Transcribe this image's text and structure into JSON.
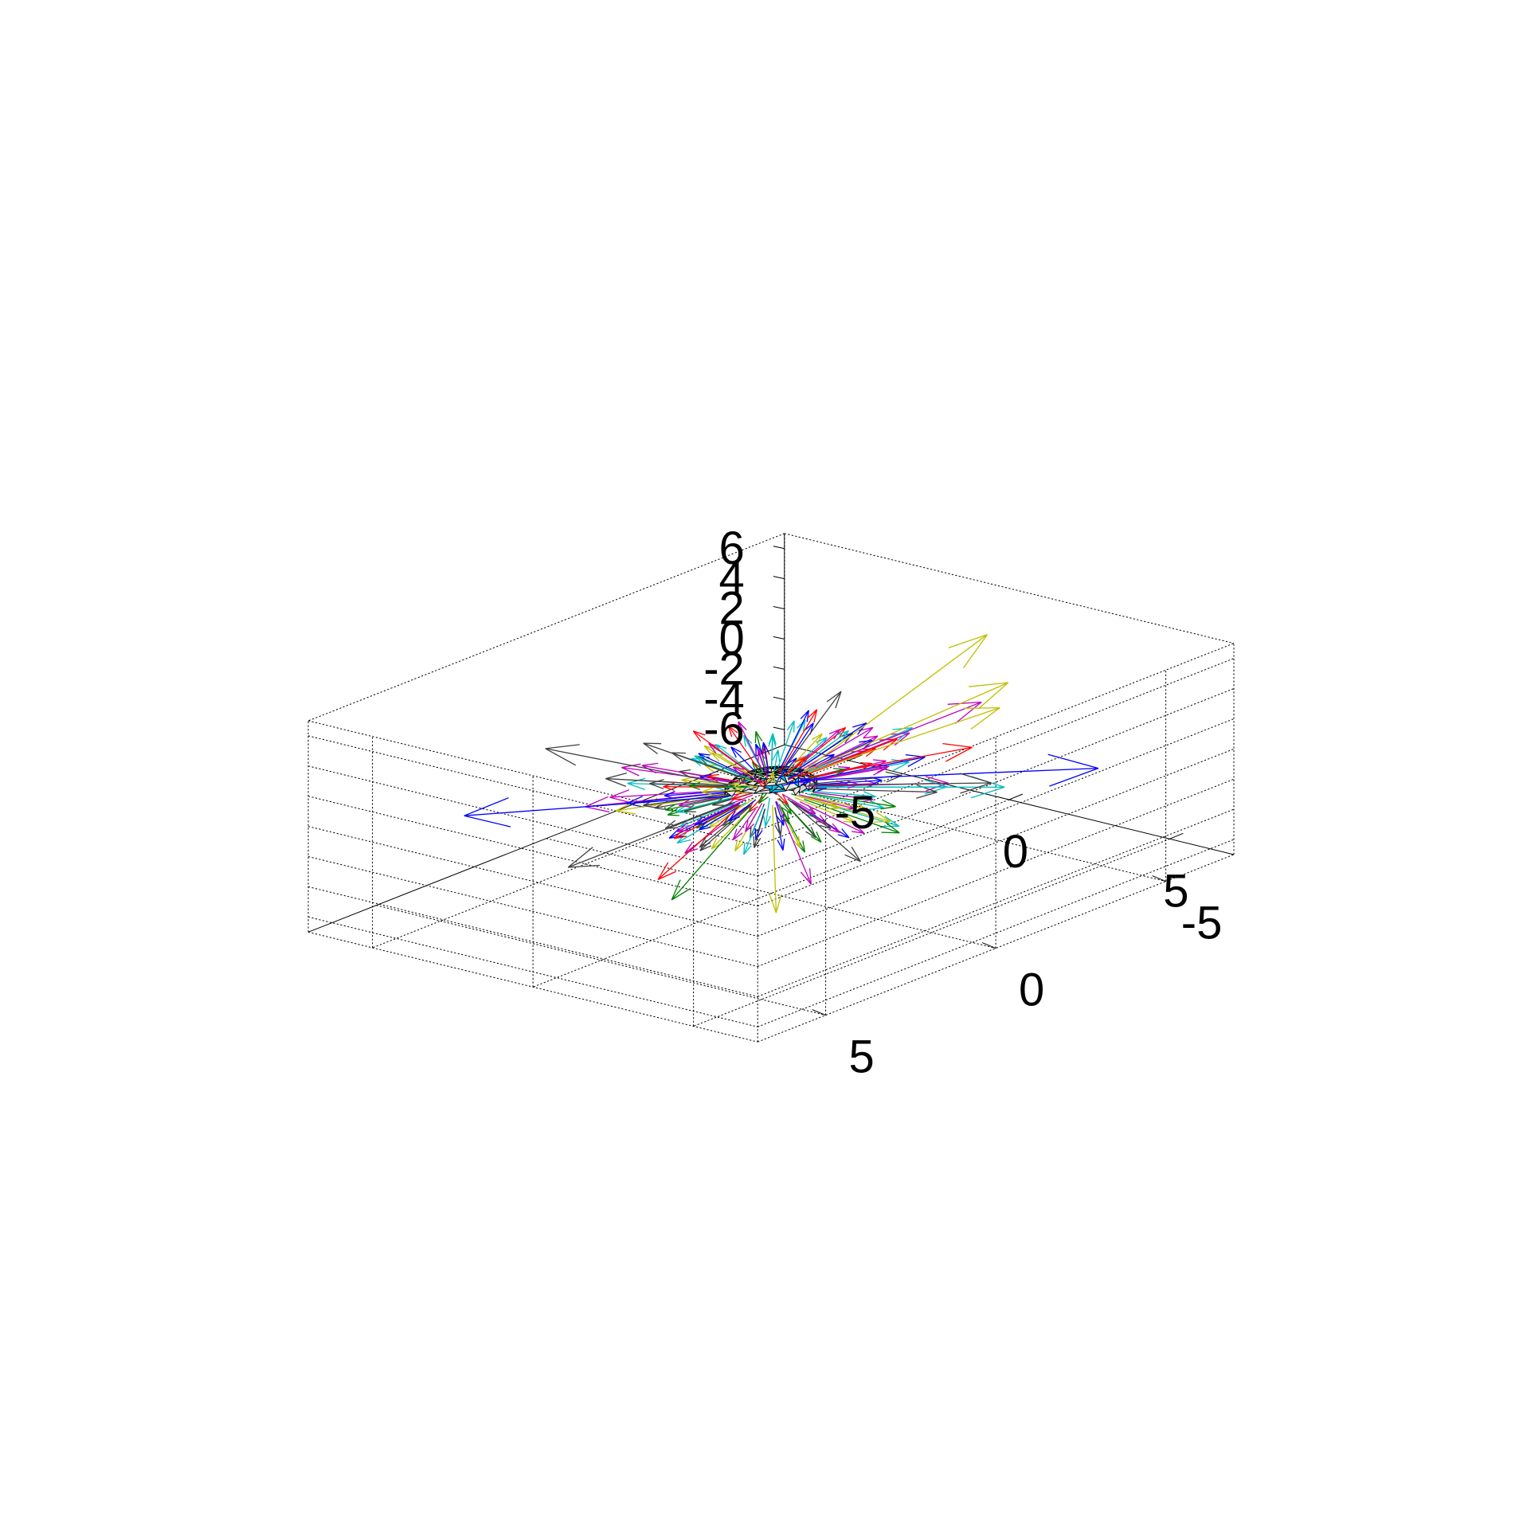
{
  "chart_data": {
    "type": "3d-quiver",
    "description_of_marks": "3D quiver plot: arrows radiating outward from points on a triangulated unit-ish sphere centered at the origin; sphere facets shaded white/grey with some cyan faces",
    "grid": true,
    "box": "dotted",
    "axes": {
      "x": {
        "ticks": [
          -5,
          0,
          5
        ],
        "tick_labels": [
          "-5",
          "0",
          "5"
        ],
        "range": [
          -7,
          7
        ],
        "label": ""
      },
      "y": {
        "ticks": [
          -5,
          0,
          5
        ],
        "tick_labels": [
          "-5",
          "0",
          "5"
        ],
        "range": [
          -7,
          7
        ],
        "label": ""
      },
      "z": {
        "ticks": [
          -6,
          -4,
          -2,
          0,
          2,
          4,
          6
        ],
        "tick_labels": [
          "-6",
          "-4",
          "-2",
          "0",
          "2",
          "4",
          "6"
        ],
        "range": [
          -7,
          7
        ],
        "label": ""
      }
    },
    "sphere": {
      "center": [
        0,
        0,
        0
      ],
      "radius": 1,
      "face_colors": [
        "#e8e8e8",
        "#d2d2d2",
        "#00bfff"
      ],
      "edge_color": "#000000"
    },
    "arrow_colors": [
      "#0000ff",
      "#008000",
      "#ff0000",
      "#00bfbf",
      "#bf00bf",
      "#bfbf00",
      "#404040"
    ],
    "long_arrows": [
      {
        "color": "#bfbf00",
        "start": [
          0.37,
          -0.58,
          0.73
        ],
        "end": [
          2.5,
          -4.0,
          7.9
        ]
      },
      {
        "color": "#0000ff",
        "start": [
          0.1,
          -0.95,
          -0.3
        ],
        "end": [
          3.2,
          -6.6,
          -2.9
        ]
      },
      {
        "color": "#0000ff",
        "start": [
          -0.3,
          0.9,
          0.1
        ],
        "end": [
          -3.2,
          6.0,
          1.8
        ]
      },
      {
        "color": "#404040",
        "start": [
          -0.5,
          0.6,
          0.4
        ],
        "end": [
          -3.0,
          3.8,
          4.4
        ]
      },
      {
        "color": "#bfbf00",
        "start": [
          0.15,
          0.1,
          -0.98
        ],
        "end": [
          0.9,
          0.7,
          -7.2
        ]
      },
      {
        "color": "#bf00bf",
        "start": [
          0.05,
          -0.12,
          -0.99
        ],
        "end": [
          0.4,
          -0.8,
          -6.9
        ]
      },
      {
        "color": "#404040",
        "start": [
          0.2,
          -0.3,
          -0.9
        ],
        "end": [
          1.2,
          -1.5,
          -5.6
        ]
      },
      {
        "color": "#404040",
        "start": [
          0.1,
          -0.25,
          0.96
        ],
        "end": [
          0.7,
          -1.4,
          5.5
        ]
      },
      {
        "color": "#ff0000",
        "start": [
          0.15,
          -0.1,
          0.97
        ],
        "end": [
          0.9,
          -0.5,
          5.2
        ]
      },
      {
        "color": "#008000",
        "start": [
          0.0,
          0.55,
          -0.8
        ],
        "end": [
          0.4,
          3.3,
          -4.3
        ]
      },
      {
        "color": "#bf00bf",
        "start": [
          0.3,
          -0.7,
          0.6
        ],
        "end": [
          2.0,
          -4.3,
          2.9
        ]
      },
      {
        "color": "#bfbf00",
        "start": [
          0.3,
          -0.7,
          0.6
        ],
        "end": [
          2.3,
          -4.8,
          3.9
        ]
      },
      {
        "color": "#bfbf00",
        "start": [
          0.2,
          -0.9,
          0.3
        ],
        "end": [
          1.3,
          -5.5,
          1.1
        ]
      },
      {
        "color": "#404040",
        "start": [
          0.3,
          -0.8,
          -0.4
        ],
        "end": [
          2.3,
          -4.3,
          -2.3
        ]
      },
      {
        "color": "#00bfbf",
        "start": [
          0.3,
          -0.8,
          -0.5
        ],
        "end": [
          2.4,
          -4.6,
          -2.8
        ]
      },
      {
        "color": "#ff0000",
        "start": [
          0.2,
          -0.9,
          0.0
        ],
        "end": [
          1.6,
          -4.4,
          -0.4
        ]
      },
      {
        "color": "#404040",
        "start": [
          -0.2,
          0.9,
          -0.3
        ],
        "end": [
          -0.6,
          5.4,
          -0.8
        ]
      },
      {
        "color": "#ff0000",
        "start": [
          -0.1,
          0.8,
          -0.5
        ],
        "end": [
          0.4,
          3.7,
          -2.6
        ]
      }
    ],
    "short_arrow_count_approx": 160,
    "short_arrow_length_range": [
      1.2,
      3.0
    ]
  }
}
